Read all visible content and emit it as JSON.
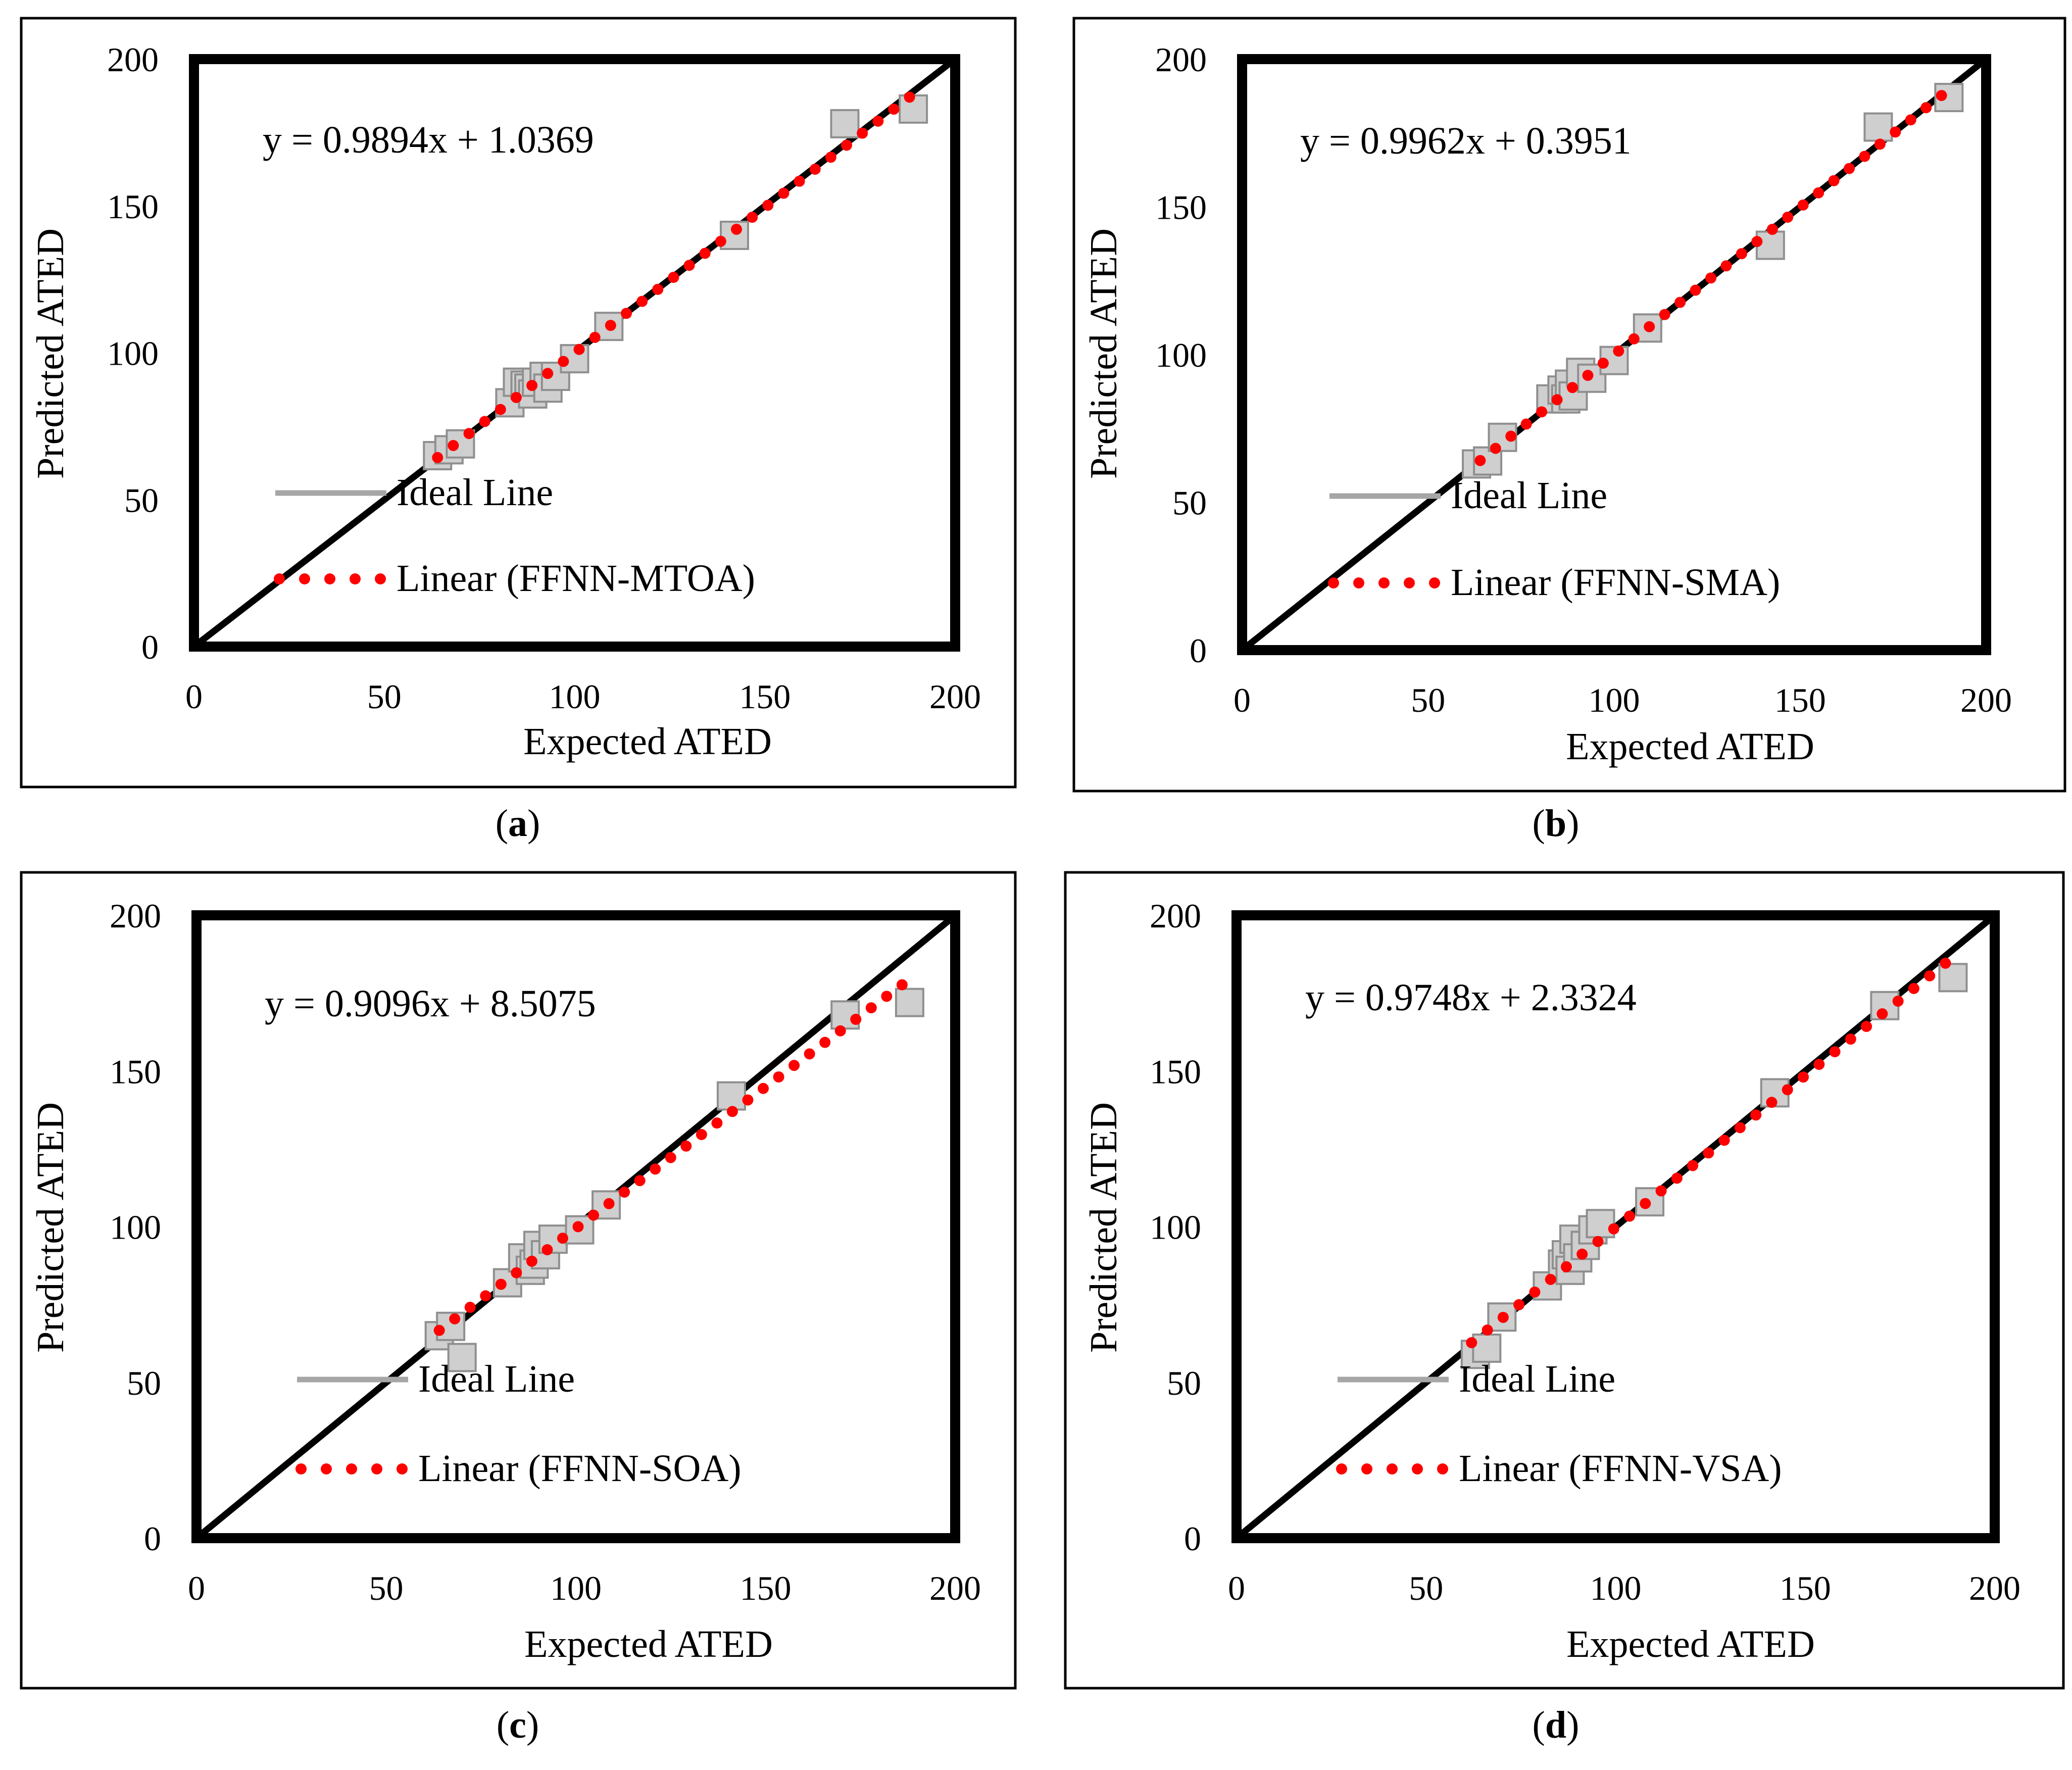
{
  "figure": {
    "colors": {
      "ideal": "#000000",
      "trend": "#ff0000",
      "marker": "#cfcfcf",
      "legend_ideal": "#a6a6a6"
    }
  },
  "chart_data": [
    {
      "type": "scatter",
      "caption": "a",
      "xlabel": "Expected ATED",
      "ylabel": "Predicted ATED",
      "xlim": [
        0,
        200
      ],
      "ylim": [
        0,
        200
      ],
      "xticks": [
        0,
        50,
        100,
        150,
        200
      ],
      "yticks": [
        0,
        50,
        100,
        150,
        200
      ],
      "equation": "y = 0.9894x + 1.0369",
      "slope": 0.9894,
      "intercept": 1.0369,
      "trend_range": [
        64,
        188
      ],
      "legend": {
        "ideal": "Ideal Line",
        "trend": "Linear (FFNN-MTOA)"
      },
      "points": [
        [
          64,
          65
        ],
        [
          67,
          67
        ],
        [
          70,
          69
        ],
        [
          83,
          83
        ],
        [
          85,
          90
        ],
        [
          87,
          89
        ],
        [
          88,
          88
        ],
        [
          89,
          86
        ],
        [
          90,
          90
        ],
        [
          92,
          92
        ],
        [
          93,
          88
        ],
        [
          95,
          92
        ],
        [
          100,
          98
        ],
        [
          109,
          109
        ],
        [
          142,
          140
        ],
        [
          171,
          178
        ],
        [
          189,
          183
        ]
      ]
    },
    {
      "type": "scatter",
      "caption": "b",
      "xlabel": "Expected ATED",
      "ylabel": "Predicted ATED",
      "xlim": [
        0,
        200
      ],
      "ylim": [
        0,
        200
      ],
      "xticks": [
        0,
        50,
        100,
        150,
        200
      ],
      "yticks": [
        0,
        50,
        100,
        150,
        200
      ],
      "equation": "y = 0.9962x + 0.3951",
      "slope": 0.9962,
      "intercept": 0.3951,
      "trend_range": [
        64,
        188
      ],
      "legend": {
        "ideal": "Ideal Line",
        "trend": "Linear (FFNN-SMA)"
      },
      "points": [
        [
          63,
          63
        ],
        [
          66,
          64
        ],
        [
          70,
          72
        ],
        [
          83,
          85
        ],
        [
          86,
          88
        ],
        [
          87,
          85
        ],
        [
          88,
          90
        ],
        [
          89,
          86
        ],
        [
          91,
          94
        ],
        [
          94,
          92
        ],
        [
          100,
          98
        ],
        [
          109,
          109
        ],
        [
          142,
          137
        ],
        [
          171,
          177
        ],
        [
          190,
          187
        ]
      ]
    },
    {
      "type": "scatter",
      "caption": "c",
      "xlabel": "Expected ATED",
      "ylabel": "Predicted ATED",
      "xlim": [
        0,
        200
      ],
      "ylim": [
        0,
        200
      ],
      "xticks": [
        0,
        50,
        100,
        150,
        200
      ],
      "yticks": [
        0,
        50,
        100,
        150,
        200
      ],
      "equation": "y = 0.9096x + 8.5075",
      "slope": 0.9096,
      "intercept": 8.5075,
      "trend_range": [
        64,
        186
      ],
      "legend": {
        "ideal": "Ideal Line",
        "trend": "Linear (FFNN-SOA)"
      },
      "points": [
        [
          64,
          65
        ],
        [
          67,
          68
        ],
        [
          70,
          58
        ],
        [
          82,
          82
        ],
        [
          86,
          90
        ],
        [
          88,
          86
        ],
        [
          89,
          88
        ],
        [
          90,
          94
        ],
        [
          92,
          91
        ],
        [
          94,
          96
        ],
        [
          101,
          99
        ],
        [
          108,
          107
        ],
        [
          141,
          142
        ],
        [
          171,
          168
        ],
        [
          188,
          172
        ]
      ]
    },
    {
      "type": "scatter",
      "caption": "d",
      "xlabel": "Expected ATED",
      "ylabel": "Predicted ATED",
      "xlim": [
        0,
        200
      ],
      "ylim": [
        0,
        200
      ],
      "xticks": [
        0,
        50,
        100,
        150,
        200
      ],
      "yticks": [
        0,
        50,
        100,
        150,
        200
      ],
      "equation": "y = 0.9748x + 2.3324",
      "slope": 0.9748,
      "intercept": 2.3324,
      "trend_range": [
        62,
        187
      ],
      "legend": {
        "ideal": "Ideal Line",
        "trend": "Linear (FFNN-VSA)"
      },
      "points": [
        [
          63,
          59
        ],
        [
          66,
          61
        ],
        [
          70,
          71
        ],
        [
          82,
          81
        ],
        [
          86,
          88
        ],
        [
          87,
          91
        ],
        [
          88,
          86
        ],
        [
          89,
          96
        ],
        [
          90,
          90
        ],
        [
          92,
          94
        ],
        [
          94,
          99
        ],
        [
          96,
          101
        ],
        [
          109,
          108
        ],
        [
          142,
          143
        ],
        [
          171,
          171
        ],
        [
          189,
          180
        ]
      ]
    }
  ]
}
